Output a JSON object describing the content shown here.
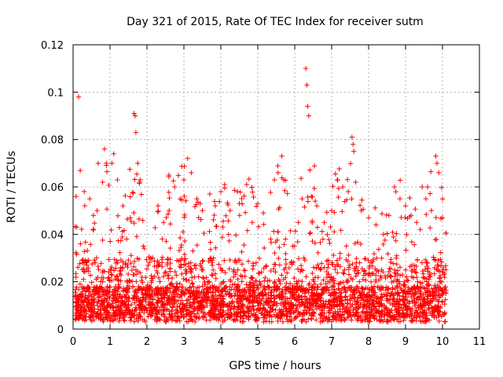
{
  "chart_data": {
    "type": "scatter",
    "title": "Day 321 of 2015, Rate Of TEC Index for receiver sutm",
    "xlabel": "GPS time / hours",
    "ylabel": "ROTI / TECUs",
    "xlim": [
      0,
      11
    ],
    "ylim": [
      0,
      0.12
    ],
    "xticks": [
      0,
      1,
      2,
      3,
      4,
      5,
      6,
      7,
      8,
      9,
      10,
      11
    ],
    "xtick_labels": [
      "0",
      "1",
      "2",
      "3",
      "4",
      "5",
      "6",
      "7",
      "8",
      "9",
      "10",
      "11"
    ],
    "yticks": [
      0,
      0.02,
      0.04,
      0.06,
      0.08,
      0.1,
      0.12
    ],
    "ytick_labels": [
      "0",
      "0.02",
      "0.04",
      "0.06",
      "0.08",
      "0.1",
      "0.12"
    ],
    "grid": true,
    "marker": "+",
    "color": "#ff0000",
    "x_data_range": [
      0.05,
      10.1
    ],
    "series": [
      {
        "name": "ROTI",
        "points": [
          [
            0.15,
            0.098
          ],
          [
            0.1,
            0.043
          ],
          [
            0.2,
            0.036
          ],
          [
            0.3,
            0.028
          ],
          [
            0.45,
            0.055
          ],
          [
            0.55,
            0.048
          ],
          [
            0.65,
            0.05
          ],
          [
            0.8,
            0.062
          ],
          [
            0.85,
            0.076
          ],
          [
            0.9,
            0.07
          ],
          [
            1.05,
            0.07
          ],
          [
            1.1,
            0.074
          ],
          [
            1.2,
            0.063
          ],
          [
            1.35,
            0.052
          ],
          [
            1.45,
            0.038
          ],
          [
            1.55,
            0.047
          ],
          [
            1.65,
            0.091
          ],
          [
            1.68,
            0.09
          ],
          [
            1.7,
            0.083
          ],
          [
            1.75,
            0.07
          ],
          [
            1.8,
            0.062
          ],
          [
            1.9,
            0.035
          ],
          [
            2.1,
            0.03
          ],
          [
            2.3,
            0.052
          ],
          [
            2.45,
            0.045
          ],
          [
            2.6,
            0.05
          ],
          [
            2.75,
            0.06
          ],
          [
            2.9,
            0.055
          ],
          [
            3.0,
            0.063
          ],
          [
            3.1,
            0.072
          ],
          [
            3.2,
            0.066
          ],
          [
            3.35,
            0.055
          ],
          [
            3.5,
            0.05
          ],
          [
            3.7,
            0.057
          ],
          [
            3.85,
            0.052
          ],
          [
            4.0,
            0.058
          ],
          [
            4.1,
            0.061
          ],
          [
            4.25,
            0.05
          ],
          [
            4.45,
            0.058
          ],
          [
            4.5,
            0.053
          ],
          [
            4.7,
            0.061
          ],
          [
            4.85,
            0.045
          ],
          [
            5.0,
            0.053
          ],
          [
            5.15,
            0.049
          ],
          [
            5.35,
            0.038
          ],
          [
            5.45,
            0.063
          ],
          [
            5.55,
            0.066
          ],
          [
            5.65,
            0.073
          ],
          [
            5.75,
            0.038
          ],
          [
            5.95,
            0.035
          ],
          [
            6.1,
            0.045
          ],
          [
            6.2,
            0.055
          ],
          [
            6.3,
            0.11
          ],
          [
            6.33,
            0.103
          ],
          [
            6.35,
            0.094
          ],
          [
            6.38,
            0.09
          ],
          [
            6.45,
            0.056
          ],
          [
            6.6,
            0.052
          ],
          [
            6.8,
            0.045
          ],
          [
            7.0,
            0.05
          ],
          [
            7.15,
            0.063
          ],
          [
            7.3,
            0.06
          ],
          [
            7.45,
            0.058
          ],
          [
            7.55,
            0.081
          ],
          [
            7.58,
            0.078
          ],
          [
            7.6,
            0.075
          ],
          [
            7.65,
            0.062
          ],
          [
            7.8,
            0.05
          ],
          [
            8.0,
            0.047
          ],
          [
            8.2,
            0.044
          ],
          [
            8.4,
            0.04
          ],
          [
            8.55,
            0.048
          ],
          [
            8.7,
            0.06
          ],
          [
            8.85,
            0.055
          ],
          [
            9.0,
            0.052
          ],
          [
            9.15,
            0.048
          ],
          [
            9.3,
            0.045
          ],
          [
            9.45,
            0.06
          ],
          [
            9.55,
            0.055
          ],
          [
            9.7,
            0.05
          ],
          [
            9.82,
            0.073
          ],
          [
            9.85,
            0.07
          ],
          [
            9.9,
            0.066
          ],
          [
            10.0,
            0.047
          ],
          [
            0.12,
            0.008
          ],
          [
            0.25,
            0.012
          ],
          [
            0.4,
            0.01
          ],
          [
            0.6,
            0.015
          ],
          [
            0.75,
            0.02
          ],
          [
            0.95,
            0.01
          ],
          [
            1.15,
            0.018
          ],
          [
            1.3,
            0.012
          ],
          [
            1.5,
            0.008
          ],
          [
            1.7,
            0.025
          ],
          [
            1.95,
            0.015
          ],
          [
            2.15,
            0.01
          ],
          [
            2.35,
            0.02
          ],
          [
            2.55,
            0.012
          ],
          [
            2.8,
            0.018
          ],
          [
            3.05,
            0.025
          ],
          [
            3.25,
            0.015
          ],
          [
            3.45,
            0.01
          ],
          [
            3.65,
            0.02
          ],
          [
            3.9,
            0.012
          ],
          [
            4.15,
            0.018
          ],
          [
            4.35,
            0.025
          ],
          [
            4.6,
            0.01
          ],
          [
            4.8,
            0.015
          ],
          [
            5.05,
            0.02
          ],
          [
            5.25,
            0.012
          ],
          [
            5.5,
            0.018
          ],
          [
            5.7,
            0.01
          ],
          [
            5.9,
            0.015
          ],
          [
            6.05,
            0.02
          ],
          [
            6.25,
            0.03
          ],
          [
            6.5,
            0.018
          ],
          [
            6.7,
            0.012
          ],
          [
            6.9,
            0.02
          ],
          [
            7.1,
            0.015
          ],
          [
            7.35,
            0.025
          ],
          [
            7.5,
            0.012
          ],
          [
            7.75,
            0.02
          ],
          [
            7.95,
            0.01
          ],
          [
            8.15,
            0.018
          ],
          [
            8.35,
            0.025
          ],
          [
            8.6,
            0.015
          ],
          [
            8.8,
            0.02
          ],
          [
            9.05,
            0.012
          ],
          [
            9.25,
            0.018
          ],
          [
            9.5,
            0.01
          ],
          [
            9.75,
            0.015
          ],
          [
            9.95,
            0.02
          ]
        ]
      }
    ]
  }
}
